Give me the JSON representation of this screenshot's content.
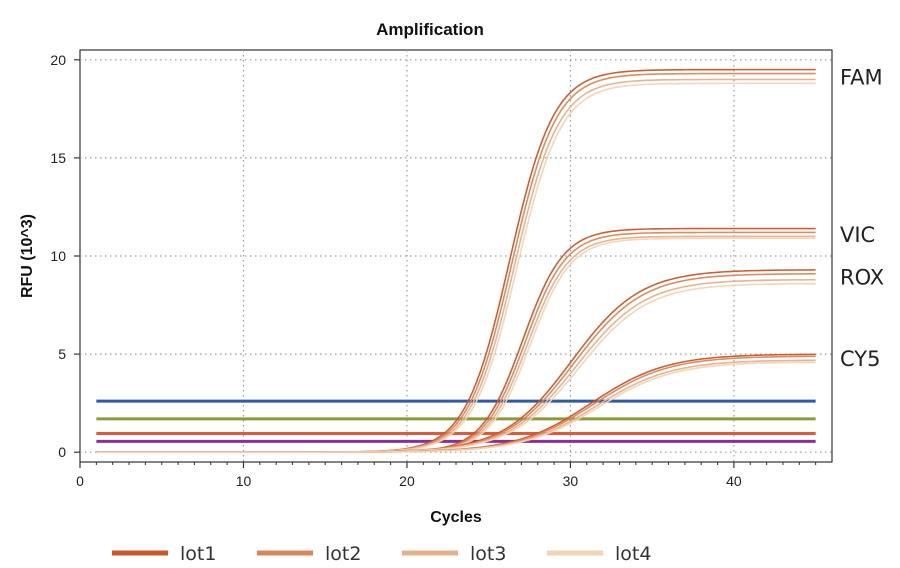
{
  "chart_data": {
    "type": "line",
    "title": "Amplification",
    "xlabel": "Cycles",
    "ylabel": "RFU (10^3)",
    "xlim": [
      0,
      46
    ],
    "ylim": [
      -0.5,
      20.5
    ],
    "xticks": [
      0,
      10,
      20,
      30,
      40
    ],
    "yticks": [
      0,
      5,
      10,
      15,
      20
    ],
    "grid": true,
    "x_range": [
      1,
      45
    ],
    "lot_series": [
      {
        "name": "lot1",
        "color": "#c9572a"
      },
      {
        "name": "lot2",
        "color": "#d9875a"
      },
      {
        "name": "lot3",
        "color": "#e6b08c"
      },
      {
        "name": "lot4",
        "color": "#f2d3b6"
      }
    ],
    "dyes": [
      {
        "name": "FAM",
        "midpoint_cycle": 26.5,
        "slope": 1.35,
        "plateau_by_lot": [
          19.5,
          19.3,
          19.0,
          18.8
        ]
      },
      {
        "name": "VIC",
        "midpoint_cycle": 27.3,
        "slope": 1.25,
        "plateau_by_lot": [
          11.4,
          11.2,
          11.0,
          10.9
        ]
      },
      {
        "name": "ROX",
        "midpoint_cycle": 30.3,
        "slope": 2.1,
        "plateau_by_lot": [
          9.3,
          9.1,
          8.8,
          8.6
        ]
      },
      {
        "name": "CY5",
        "midpoint_cycle": 31.5,
        "slope": 2.3,
        "plateau_by_lot": [
          5.0,
          4.9,
          4.7,
          4.6
        ]
      }
    ],
    "thresholds": [
      {
        "value": 2.6,
        "color": "#2f5aa6"
      },
      {
        "value": 1.7,
        "color": "#8c9a3a"
      },
      {
        "value": 0.95,
        "color": "#e05a3a"
      },
      {
        "value": 0.55,
        "color": "#8a2e9a"
      }
    ],
    "legend": {
      "position": "bottom",
      "entries": [
        "lot1",
        "lot2",
        "lot3",
        "lot4"
      ]
    }
  }
}
